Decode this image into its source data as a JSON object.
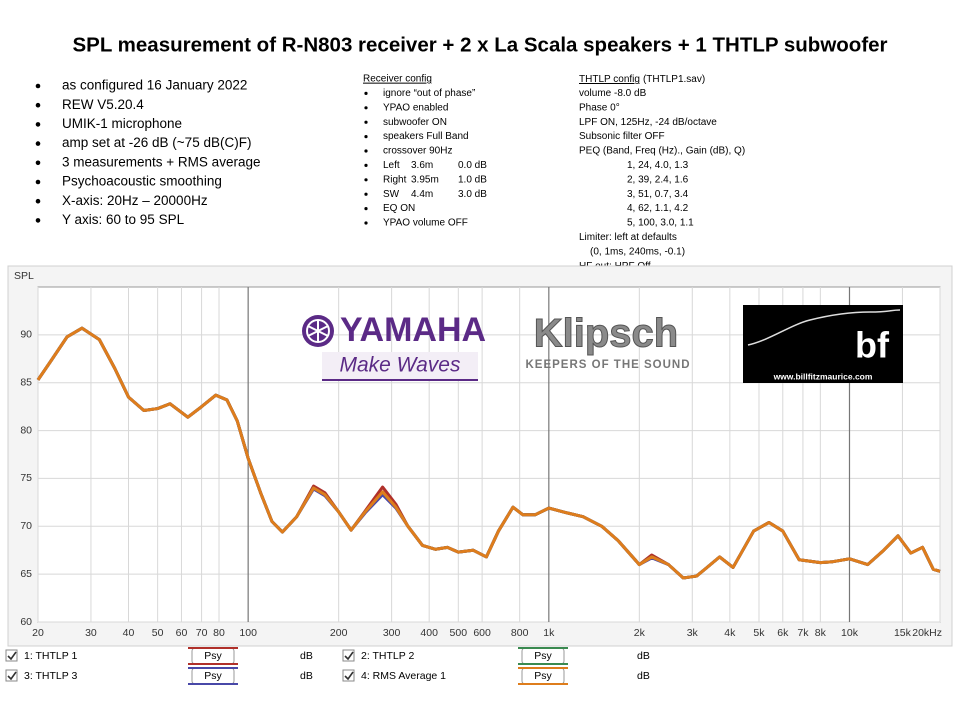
{
  "title": "SPL measurement of R-N803 receiver + 2 x La Scala speakers + 1 THTLP subwoofer",
  "notes": [
    "as configured 16 January 2022",
    "REW V5.20.4",
    "UMIK-1 microphone",
    "amp set at -26 dB (~75 dB(C)F)",
    "3 measurements + RMS average",
    "Psychoacoustic smoothing",
    "X-axis: 20Hz – 20000Hz",
    "Y axis: 60 to 95 SPL"
  ],
  "receiver_config": {
    "heading": "Receiver config",
    "items_before": [
      "ignore “out of phase”",
      "YPAO enabled",
      "subwoofer ON",
      "speakers Full Band",
      "crossover 90Hz"
    ],
    "channels": [
      [
        "Left",
        "3.6m",
        "0.0 dB"
      ],
      [
        "Right",
        "3.95m",
        "1.0 dB"
      ],
      [
        "SW",
        "4.4m",
        "3.0 dB"
      ]
    ],
    "items_after": [
      "EQ ON",
      "YPAO volume OFF"
    ]
  },
  "thtlp_config": {
    "heading": "THTLP config",
    "file": "(THTLP1.sav)",
    "lines": [
      "volume -8.0 dB",
      "Phase 0°",
      "LPF ON, 125Hz, -24 dB/octave",
      "Subsonic filter OFF",
      "PEQ (Band, Freq (Hz)., Gain (dB), Q)"
    ],
    "peq_bands": [
      "1, 24, 4.0, 1.3",
      "2, 39, 2.4, 1.6",
      "3, 51, 0.7, 3.4",
      "4, 62, 1.1, 4.2",
      "5, 100, 3.0, 1.1"
    ],
    "limiter": "Limiter: left at defaults",
    "limiter_defaults": "(0, 1ms, 240ms, -0.1)",
    "hf_out": "HF out: HPF Off"
  },
  "logos": {
    "yamaha": "YAMAHA",
    "yamaha_tagline": "Make Waves",
    "klipsch": "Klipsch",
    "klipsch_tagline": "KEEPERS OF THE SOUND",
    "bf": "bf",
    "bf_url": "www.billfitzmaurice.com"
  },
  "chart_data": {
    "type": "line",
    "y_label": "SPL",
    "x_log": true,
    "grid": true,
    "xlim": [
      20,
      20000
    ],
    "ylim": [
      60,
      95
    ],
    "yticks": [
      60,
      65,
      70,
      75,
      80,
      85,
      90
    ],
    "xticks": [
      20,
      30,
      40,
      50,
      60,
      70,
      80,
      100,
      200,
      300,
      400,
      500,
      600,
      800,
      {
        "value": 1000,
        "label": "1k"
      },
      {
        "value": 2000,
        "label": "2k"
      },
      {
        "value": 3000,
        "label": "3k"
      },
      {
        "value": 4000,
        "label": "4k"
      },
      {
        "value": 5000,
        "label": "5k"
      },
      {
        "value": 6000,
        "label": "6k"
      },
      {
        "value": 7000,
        "label": "7k"
      },
      {
        "value": 8000,
        "label": "8k"
      },
      {
        "value": 10000,
        "label": "10k"
      },
      {
        "value": 15000,
        "label": "15k"
      },
      {
        "value": 20000,
        "label": "20kHz"
      }
    ],
    "legend_button": "Psy",
    "legend_unit": "dB",
    "x": [
      20,
      22,
      25,
      28,
      32,
      36,
      40,
      45,
      50,
      55,
      63,
      70,
      78,
      85,
      92,
      100,
      110,
      120,
      130,
      145,
      165,
      180,
      200,
      220,
      245,
      280,
      310,
      340,
      380,
      420,
      460,
      500,
      560,
      620,
      680,
      760,
      820,
      900,
      1000,
      1150,
      1300,
      1500,
      1700,
      2000,
      2200,
      2500,
      2800,
      3100,
      3300,
      3700,
      4100,
      4800,
      5400,
      6000,
      6800,
      8000,
      8800,
      10000,
      11500,
      13000,
      14500,
      16000,
      17500,
      19000,
      20000
    ],
    "series": [
      {
        "name": "1: THTLP 1",
        "color": "#b0302a",
        "values": [
          85.3,
          87.2,
          89.8,
          90.7,
          89.5,
          86.5,
          83.5,
          82.1,
          82.3,
          82.8,
          81.4,
          82.5,
          83.7,
          83.2,
          81,
          77.1,
          73.5,
          70.5,
          69.4,
          71,
          74.2,
          73.5,
          71.5,
          69.6,
          71.6,
          74.1,
          72.3,
          70,
          68,
          67.6,
          67.8,
          67.3,
          67.5,
          66.8,
          69.5,
          72,
          71.2,
          71.2,
          71.9,
          71.4,
          71,
          70,
          68.5,
          66,
          67,
          66,
          64.6,
          64.8,
          65.5,
          66.8,
          65.7,
          69.5,
          70.4,
          69.5,
          66.5,
          66.2,
          66.3,
          66.6,
          66,
          67.5,
          69,
          67.2,
          67.8,
          65.5,
          65.3
        ]
      },
      {
        "name": "2: THTLP 2",
        "color": "#3a8a50",
        "values": [
          85.3,
          87.2,
          89.8,
          90.7,
          89.5,
          86.5,
          83.5,
          82.1,
          82.3,
          82.8,
          81.4,
          82.5,
          83.7,
          83.2,
          81,
          77.1,
          73.5,
          70.5,
          69.4,
          71,
          74,
          73.3,
          71.5,
          69.6,
          71.5,
          73.4,
          72,
          70,
          68,
          67.6,
          67.8,
          67.3,
          67.5,
          66.8,
          69.5,
          72,
          71.2,
          71.2,
          71.9,
          71.4,
          71,
          70,
          68.5,
          66,
          66.8,
          66,
          64.6,
          64.8,
          65.5,
          66.8,
          65.7,
          69.5,
          70.4,
          69.5,
          66.5,
          66.2,
          66.3,
          66.6,
          66,
          67.5,
          69,
          67.2,
          67.8,
          65.5,
          65.3
        ]
      },
      {
        "name": "3: THTLP 3",
        "color": "#4848a8",
        "values": [
          85.3,
          87.2,
          89.8,
          90.7,
          89.5,
          86.5,
          83.5,
          82.1,
          82.3,
          82.8,
          81.4,
          82.5,
          83.7,
          83.2,
          81,
          77.1,
          73.5,
          70.5,
          69.4,
          71,
          73.9,
          73.2,
          71.5,
          69.6,
          71.4,
          73.3,
          71.9,
          70,
          68,
          67.6,
          67.8,
          67.3,
          67.5,
          66.8,
          69.5,
          72,
          71.2,
          71.2,
          71.9,
          71.4,
          71,
          70,
          68.5,
          66,
          66.7,
          66,
          64.6,
          64.8,
          65.5,
          66.8,
          65.7,
          69.5,
          70.4,
          69.5,
          66.5,
          66.2,
          66.3,
          66.6,
          66,
          67.5,
          69,
          67.2,
          67.8,
          65.5,
          65.3
        ]
      },
      {
        "name": "4: RMS Average 1",
        "color": "#de7d1c",
        "values": [
          85.3,
          87.2,
          89.8,
          90.7,
          89.5,
          86.5,
          83.5,
          82.1,
          82.3,
          82.8,
          81.4,
          82.5,
          83.7,
          83.2,
          81,
          77.1,
          73.5,
          70.5,
          69.4,
          71,
          74,
          73.3,
          71.5,
          69.6,
          71.5,
          73.6,
          72,
          70,
          68,
          67.6,
          67.8,
          67.3,
          67.5,
          66.8,
          69.5,
          72,
          71.2,
          71.2,
          71.9,
          71.4,
          71,
          70,
          68.5,
          66,
          66.8,
          66,
          64.6,
          64.8,
          65.5,
          66.8,
          65.7,
          69.5,
          70.4,
          69.5,
          66.5,
          66.2,
          66.3,
          66.6,
          66,
          67.5,
          69,
          67.2,
          67.8,
          65.5,
          65.3
        ]
      }
    ]
  }
}
